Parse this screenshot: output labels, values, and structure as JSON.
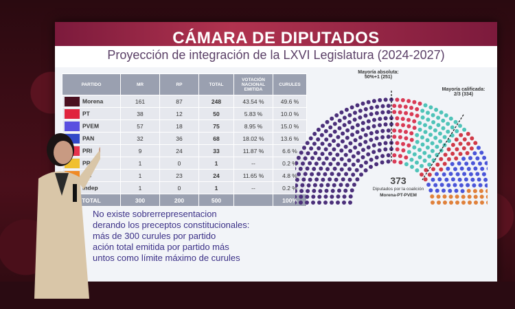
{
  "slide": {
    "title": "CÁMARA DE DIPUTADOS",
    "subtitle": "Proyección de integración de la LXVI Legislatura (2024-2027)"
  },
  "table": {
    "headers": [
      "PARTIDO",
      "MR",
      "RP",
      "TOTAL",
      "VOTACIÓN NACIONAL EMITIDA",
      "CURULES"
    ],
    "rows": [
      {
        "party": "Morena",
        "mr": "161",
        "rp": "87",
        "total": "248",
        "vote": "43.54 %",
        "seats": "49.6 %",
        "color": "#4a1020"
      },
      {
        "party": "PT",
        "mr": "38",
        "rp": "12",
        "total": "50",
        "vote": "5.83 %",
        "seats": "10.0 %",
        "color": "#e0233d"
      },
      {
        "party": "PVEM",
        "mr": "57",
        "rp": "18",
        "total": "75",
        "vote": "8.95 %",
        "seats": "15.0 %",
        "color": "#5a4fe0"
      },
      {
        "party": "PAN",
        "mr": "32",
        "rp": "36",
        "total": "68",
        "vote": "18.02 %",
        "seats": "13.6 %",
        "color": "#3148c8"
      },
      {
        "party": "PRI",
        "mr": "9",
        "rp": "24",
        "total": "33",
        "vote": "11.87 %",
        "seats": "6.6 %",
        "color": "#e6324b"
      },
      {
        "party": "PRD",
        "mr": "1",
        "rp": "0",
        "total": "1",
        "vote": "--",
        "seats": "0.2 %",
        "color": "#f0c030"
      },
      {
        "party": "MC",
        "mr": "1",
        "rp": "23",
        "total": "24",
        "vote": "11.65 %",
        "seats": "4.8 %",
        "color": "#f08a24"
      },
      {
        "party": "Indep",
        "mr": "1",
        "rp": "0",
        "total": "1",
        "vote": "--",
        "seats": "0.2 %",
        "color": "#888888"
      }
    ],
    "total": {
      "label": "TOTAL",
      "mr": "300",
      "rp": "200",
      "total": "500",
      "vote": "100%"
    }
  },
  "hemicycle": {
    "mayoria_absoluta": "Mayoría absoluta: 50%+1 (251)",
    "mayoria_calificada": "Mayoría calificada: 2/3 (334)",
    "coalition_seats": "373",
    "coalition_label": "Diputados por la coalición",
    "coalition_parties": "Morena-PT-PVEM",
    "colors": {
      "morena": "#4b2f7a",
      "pt": "#d93a55",
      "pvem": "#4fc3b8",
      "pan": "#4a55d8",
      "pri": "#d03a48",
      "mc": "#e0803a"
    }
  },
  "notes": [
    "No existe sobrerrepresentacion",
    "derando los preceptos constitucionales:",
    "más de 300 curules por partido",
    "ación total emitida por partido más",
    "untos como límite máximo de curules"
  ]
}
